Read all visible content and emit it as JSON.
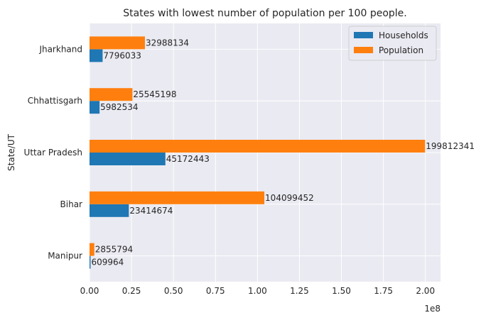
{
  "chart_data": {
    "type": "bar",
    "orientation": "horizontal",
    "title": "States with lowest number of population per 100 people.",
    "ylabel": "State/UT",
    "xlabel": "",
    "x_offset_label": "1e8",
    "categories": [
      "Manipur",
      "Bihar",
      "Uttar Pradesh",
      "Chhattisgarh",
      "Jharkhand"
    ],
    "series": [
      {
        "name": "Households",
        "color": "#1f77b4",
        "values": [
          609964,
          23414674,
          45172443,
          5982534,
          7796033
        ],
        "labels": [
          "609964",
          "23414674",
          "45172443",
          "5982534",
          "7796033"
        ]
      },
      {
        "name": "Population",
        "color": "#ff7f0e",
        "values": [
          2855794,
          104099452,
          199812341,
          25545198,
          32988134
        ],
        "labels": [
          "2855794",
          "104099452",
          "199812341",
          "25545198",
          "32988134"
        ]
      }
    ],
    "xlim": [
      0,
      209000000
    ],
    "xticks": [
      0,
      25000000,
      50000000,
      75000000,
      100000000,
      125000000,
      150000000,
      175000000,
      200000000
    ],
    "xtick_labels": [
      "0.00",
      "0.25",
      "0.50",
      "0.75",
      "1.00",
      "1.25",
      "1.50",
      "1.75",
      "2.00"
    ],
    "grid": true,
    "legend_position": "top-right",
    "background": "#eaeaf2"
  }
}
